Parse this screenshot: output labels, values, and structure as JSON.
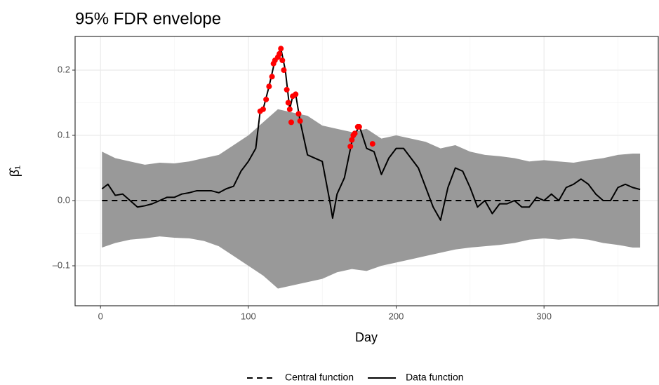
{
  "chart_data": {
    "type": "line",
    "title": "95% FDR envelope",
    "xlabel": "Day",
    "ylabel": "β̂₁",
    "xlim": [
      -17.2,
      377.3
    ],
    "ylim": [
      -0.1613,
      0.2516
    ],
    "xticks": [
      0,
      100,
      200,
      300
    ],
    "yticks": [
      {
        "value": -0.1,
        "label": "–0.1"
      },
      {
        "value": 0,
        "label": "0.0"
      },
      0.1,
      0.2
    ],
    "x_minor_ticks": [
      50,
      150,
      250,
      350
    ],
    "y_minor_ticks": [
      -0.05,
      0.05,
      0.15
    ],
    "grid": true,
    "legend": "bottom",
    "series": [
      {
        "type": "area",
        "color": "#999999",
        "x": [
          1,
          10,
          20,
          30,
          40,
          50,
          60,
          70,
          80,
          90,
          100,
          110,
          120,
          130,
          140,
          150,
          160,
          170,
          180,
          190,
          200,
          210,
          220,
          230,
          240,
          250,
          260,
          270,
          280,
          290,
          300,
          310,
          320,
          330,
          340,
          350,
          360,
          365
        ],
        "upper": [
          0.075,
          0.065,
          0.06,
          0.055,
          0.058,
          0.057,
          0.06,
          0.065,
          0.07,
          0.085,
          0.1,
          0.12,
          0.14,
          0.135,
          0.13,
          0.115,
          0.11,
          0.105,
          0.11,
          0.095,
          0.1,
          0.095,
          0.09,
          0.08,
          0.085,
          0.075,
          0.07,
          0.068,
          0.065,
          0.06,
          0.062,
          0.06,
          0.058,
          0.062,
          0.065,
          0.07,
          0.072,
          0.072
        ],
        "lower": [
          -0.072,
          -0.065,
          -0.06,
          -0.058,
          -0.055,
          -0.057,
          -0.058,
          -0.062,
          -0.07,
          -0.085,
          -0.1,
          -0.115,
          -0.135,
          -0.13,
          -0.125,
          -0.12,
          -0.11,
          -0.105,
          -0.108,
          -0.1,
          -0.095,
          -0.09,
          -0.085,
          -0.08,
          -0.075,
          -0.072,
          -0.07,
          -0.068,
          -0.065,
          -0.06,
          -0.058,
          -0.06,
          -0.058,
          -0.06,
          -0.065,
          -0.068,
          -0.072,
          -0.072
        ]
      },
      {
        "type": "line",
        "name": "Central function",
        "color": "#000000",
        "dash": true,
        "x": [
          1,
          365
        ],
        "values": [
          0,
          0
        ]
      },
      {
        "type": "line",
        "name": "Data function",
        "color": "#000000",
        "dash": false,
        "x": [
          1,
          5,
          10,
          15,
          20,
          25,
          30,
          35,
          40,
          45,
          50,
          55,
          60,
          65,
          70,
          75,
          80,
          85,
          90,
          95,
          100,
          105,
          108,
          110,
          114,
          118,
          122,
          125,
          128,
          130,
          132,
          135,
          140,
          145,
          150,
          155,
          157,
          160,
          165,
          170,
          175,
          180,
          185,
          190,
          195,
          200,
          205,
          210,
          215,
          220,
          225,
          230,
          235,
          240,
          245,
          250,
          255,
          260,
          265,
          270,
          275,
          280,
          285,
          290,
          295,
          300,
          305,
          310,
          315,
          320,
          325,
          330,
          335,
          340,
          345,
          350,
          355,
          360,
          365
        ],
        "values": [
          0.018,
          0.025,
          0.008,
          0.01,
          0.0,
          -0.01,
          -0.008,
          -0.005,
          0.0,
          0.005,
          0.005,
          0.01,
          0.012,
          0.015,
          0.015,
          0.015,
          0.012,
          0.018,
          0.022,
          0.045,
          0.06,
          0.08,
          0.137,
          0.14,
          0.175,
          0.215,
          0.233,
          0.2,
          0.14,
          0.16,
          0.163,
          0.122,
          0.07,
          0.065,
          0.06,
          0.0,
          -0.027,
          0.01,
          0.035,
          0.09,
          0.115,
          0.08,
          0.075,
          0.04,
          0.065,
          0.08,
          0.08,
          0.065,
          0.05,
          0.02,
          -0.01,
          -0.03,
          0.02,
          0.05,
          0.045,
          0.02,
          -0.01,
          0.0,
          -0.02,
          -0.005,
          -0.005,
          0.0,
          -0.01,
          -0.01,
          0.005,
          0.0,
          0.01,
          0.0,
          0.02,
          0.025,
          0.033,
          0.025,
          0.01,
          0.0,
          0.0,
          0.02,
          0.025,
          0.02,
          0.017
        ]
      },
      {
        "type": "scatter",
        "color": "#ff0000",
        "x": [
          108,
          110,
          112,
          114,
          116,
          117,
          118,
          120,
          121,
          122,
          123,
          124,
          126,
          127,
          128,
          129,
          130,
          132,
          134,
          135,
          169,
          170,
          171,
          172,
          174,
          175,
          184
        ],
        "values": [
          0.137,
          0.14,
          0.155,
          0.175,
          0.19,
          0.21,
          0.215,
          0.22,
          0.225,
          0.233,
          0.215,
          0.2,
          0.17,
          0.15,
          0.14,
          0.12,
          0.16,
          0.163,
          0.133,
          0.122,
          0.083,
          0.093,
          0.1,
          0.103,
          0.113,
          0.113,
          0.087
        ]
      }
    ]
  }
}
